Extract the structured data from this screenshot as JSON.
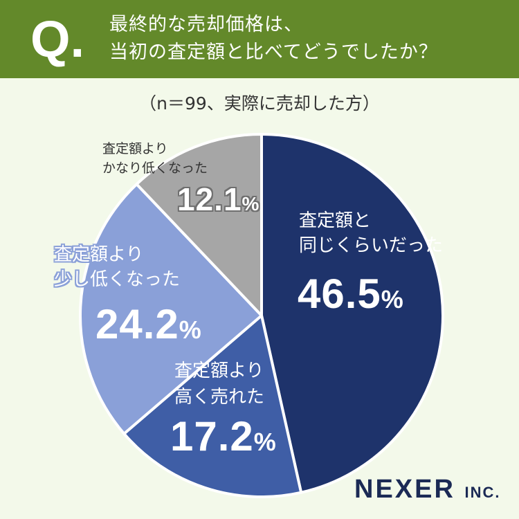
{
  "header": {
    "q_mark": "Q.",
    "question_line1": "最終的な売却価格は、",
    "question_line2": "当初の査定額と比べてどうでしたか？",
    "background": "#63892a"
  },
  "sample_note": "（n＝99、実際に売却した方）",
  "logo": {
    "name": "NEXER",
    "suffix": "INC."
  },
  "chart_data": {
    "type": "pie",
    "title": "",
    "start": "12 o'clock",
    "direction": "clockwise",
    "slices": [
      {
        "label_line1": "査定額と",
        "label_line2": "同じくらいだった",
        "value": 46.5,
        "display": "46.5",
        "unit": "%",
        "color": "#1e336b"
      },
      {
        "label_line1": "査定額より",
        "label_line2": "高く売れた",
        "value": 17.2,
        "display": "17.2",
        "unit": "%",
        "color": "#3f5ea6"
      },
      {
        "label_line1": "査定額より",
        "label_line2": "少し低くなった",
        "value": 24.2,
        "display": "24.2",
        "unit": "%",
        "color": "#8aa0d8"
      },
      {
        "label_line1": "査定額より",
        "label_line2": "かなり低くなった",
        "value": 12.1,
        "display": "12.1",
        "unit": "%",
        "color": "#a6a6a6"
      }
    ]
  }
}
